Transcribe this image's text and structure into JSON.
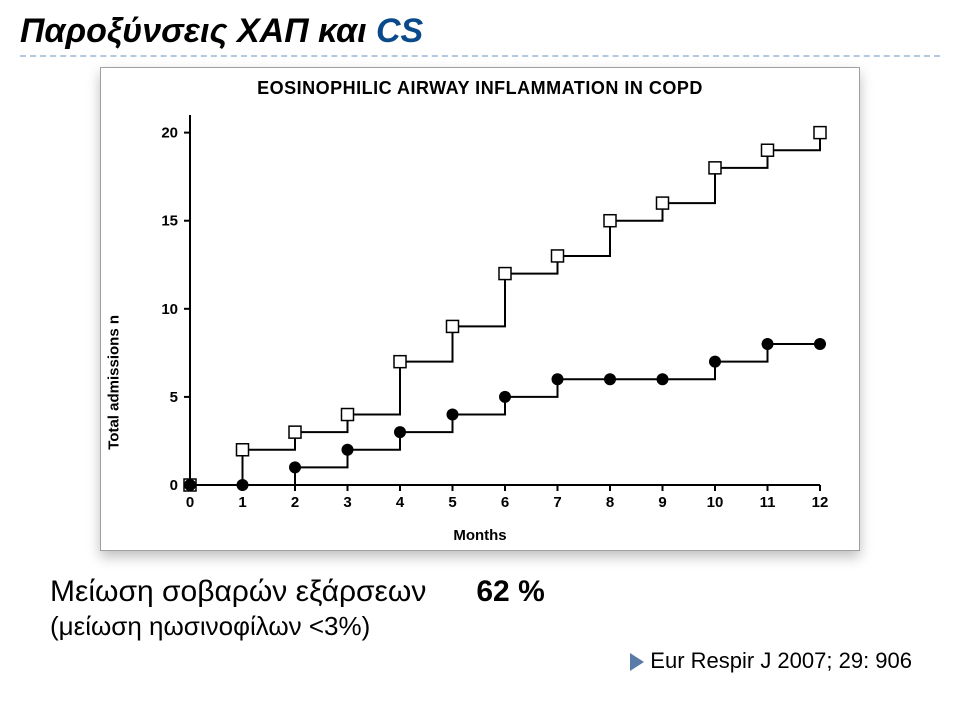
{
  "title_main": "Παροξύνσεις ΧΑΠ και ",
  "title_suffix": "CS",
  "figure": {
    "title": "EOSINOPHILIC AIRWAY INFLAMMATION IN COPD",
    "type": "step-line",
    "xlabel": "Months",
    "ylabel": "Total admissions n",
    "xlim": [
      0,
      12
    ],
    "ylim": [
      0,
      21
    ],
    "xticks": [
      0,
      1,
      2,
      3,
      4,
      5,
      6,
      7,
      8,
      9,
      10,
      11,
      12
    ],
    "yticks": [
      0,
      5,
      10,
      15,
      20
    ],
    "colors": {
      "axis": "#000000",
      "background": "#ffffff",
      "series_open": "#000000",
      "series_filled": "#000000"
    },
    "line_width": 2,
    "marker_size": 6,
    "series": {
      "open_squares": {
        "marker": "open-square",
        "points": [
          [
            0,
            0
          ],
          [
            1,
            2
          ],
          [
            2,
            3
          ],
          [
            3,
            4
          ],
          [
            4,
            7
          ],
          [
            5,
            9
          ],
          [
            6,
            12
          ],
          [
            7,
            13
          ],
          [
            8,
            15
          ],
          [
            9,
            16
          ],
          [
            10,
            18
          ],
          [
            11,
            19
          ],
          [
            12,
            20
          ]
        ]
      },
      "filled_circles": {
        "marker": "filled-circle",
        "points": [
          [
            0,
            0
          ],
          [
            1,
            0
          ],
          [
            2,
            1
          ],
          [
            3,
            2
          ],
          [
            4,
            3
          ],
          [
            5,
            4
          ],
          [
            6,
            5
          ],
          [
            7,
            6
          ],
          [
            8,
            6
          ],
          [
            9,
            6
          ],
          [
            10,
            7
          ],
          [
            11,
            8
          ],
          [
            12,
            8
          ]
        ]
      }
    }
  },
  "result": {
    "text_prefix": "Μείωση σοβαρών εξάρσεων",
    "value": "62 %",
    "sub": "(μείωση ηωσινοφίλων <3%)"
  },
  "citation": "Eur Respir J 2007; 29: 906"
}
